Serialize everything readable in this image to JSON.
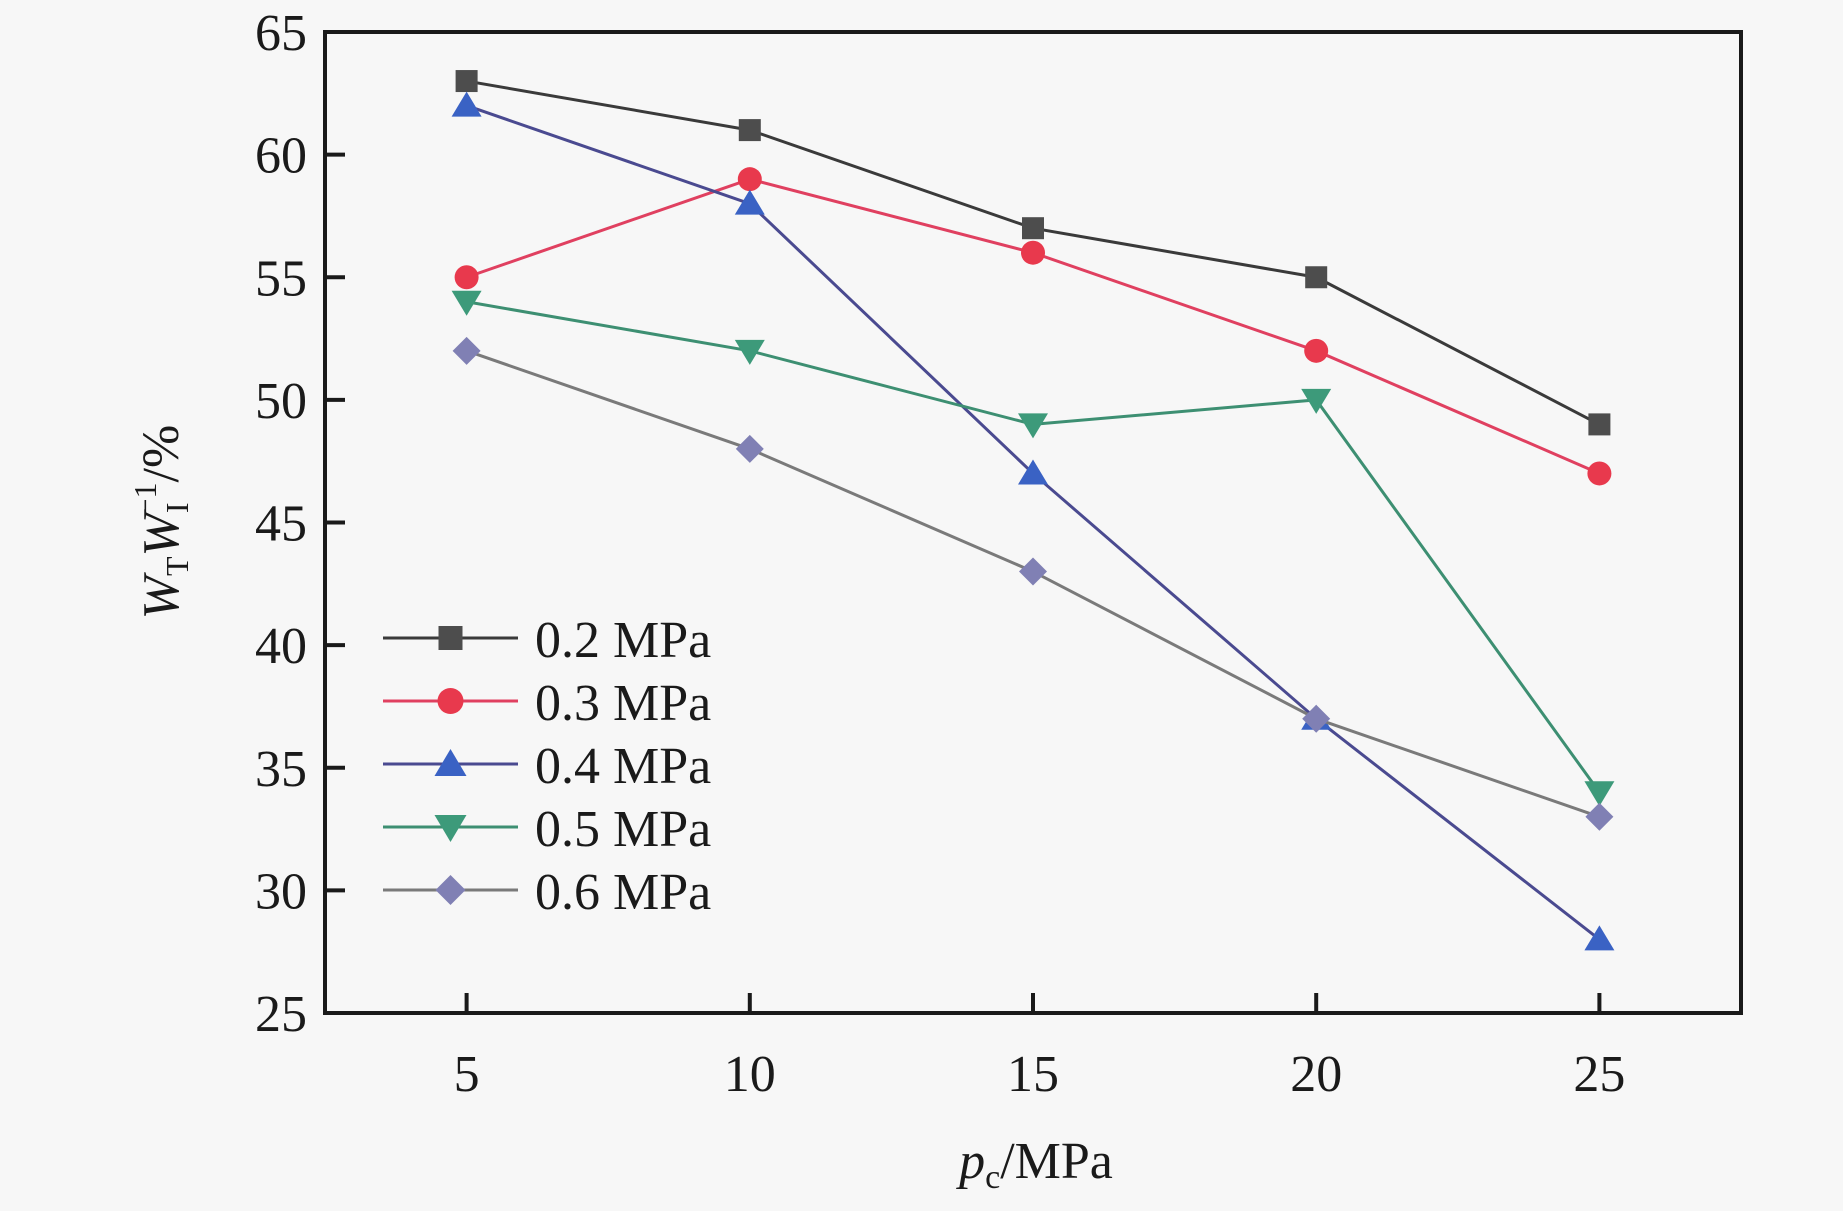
{
  "chart_data": {
    "type": "line",
    "title": "",
    "xlabel": {
      "main": "p",
      "sub": "c",
      "rest": "/MPa"
    },
    "ylabel": {
      "w1": "W",
      "w1_sub": "T",
      "w2": "W",
      "w2_sub": "I",
      "w2_sup": "−1",
      "rest": "/%"
    },
    "xlabel_text": "p_c/MPa",
    "ylabel_text": "W_T W_I^-1/%",
    "x": [
      5,
      10,
      15,
      20,
      25
    ],
    "xlim": [
      2.5,
      27.5
    ],
    "ylim": [
      25,
      65
    ],
    "xticks": [
      5,
      10,
      15,
      20,
      25
    ],
    "yticks": [
      25,
      30,
      35,
      40,
      45,
      50,
      55,
      60,
      65
    ],
    "grid": false,
    "legend_position": "bottom-left",
    "series": [
      {
        "name": "0.2 MPa",
        "marker": "square",
        "color": "#4d4d4d",
        "line_color": "#3a3a3a",
        "values": [
          63,
          61,
          57,
          55,
          49
        ]
      },
      {
        "name": "0.3 MPa",
        "marker": "circle",
        "color": "#e8394d",
        "line_color": "#e04060",
        "values": [
          55,
          59,
          56,
          52,
          47
        ]
      },
      {
        "name": "0.4 MPa",
        "marker": "triangle-up",
        "color": "#3a62c4",
        "line_color": "#4a4a90",
        "values": [
          62,
          58,
          47,
          37,
          28
        ]
      },
      {
        "name": "0.5 MPa",
        "marker": "triangle-down",
        "color": "#3d9a7a",
        "line_color": "#3d8f72",
        "values": [
          54,
          52,
          49,
          50,
          34
        ]
      },
      {
        "name": "0.6 MPa",
        "marker": "diamond",
        "color": "#8080b4",
        "line_color": "#7a7a7a",
        "values": [
          52,
          48,
          43,
          37,
          33
        ]
      }
    ]
  }
}
